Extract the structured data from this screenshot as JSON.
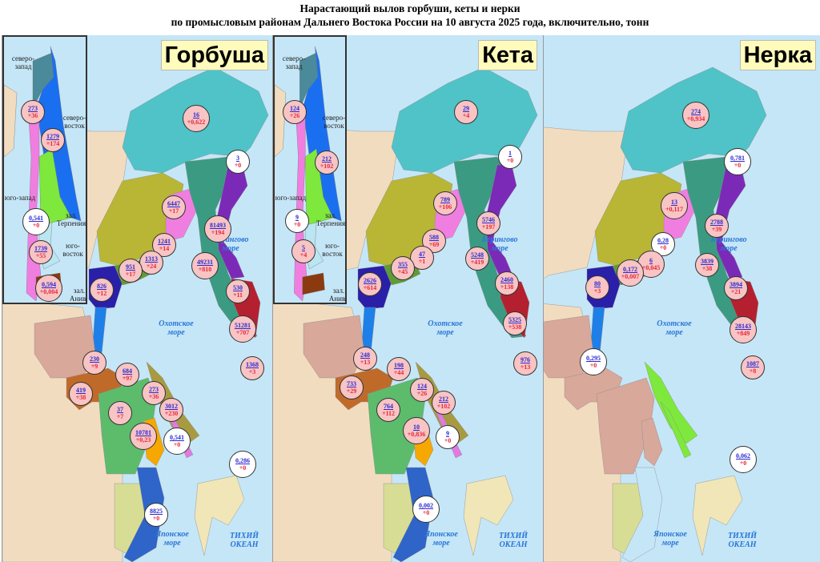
{
  "title": {
    "line1": "Нарастающий вылов горбуши, кеты и нерки",
    "line2": "по промысловым районам Дальнего Востока России на 10 августа 2025 года, включительно, тонн"
  },
  "colors": {
    "circle_nonzero": "#f8c4c4",
    "circle_zero": "#ffffff",
    "value_text": "#2a2ad0",
    "delta_text": "#e8283a",
    "sea": "#c5e6f7",
    "species_label_bg": "#fffbbb"
  },
  "seas": {
    "bering": "Берингово море",
    "okhotsk": "Охотское море",
    "japan": "Японское море",
    "pacific": "ТИХИЙ ОКЕАН"
  },
  "inset_labels": {
    "nw": "северо-запад",
    "ne": "северо-восток",
    "sw": "юго-запад",
    "terpeniya": "зал. Терпения",
    "se": "юго-восток",
    "aniva": "зал. Анива"
  },
  "panels": [
    {
      "species": "Горбуша",
      "inset": [
        {
          "value": "273",
          "delta": "+36"
        },
        {
          "value": "1279",
          "delta": "+174"
        },
        {
          "value": "0,541",
          "delta": "+0"
        },
        {
          "value": "1739",
          "delta": "+55"
        },
        {
          "value": "0,594",
          "delta": "+0,004"
        }
      ],
      "main": [
        {
          "value": "16",
          "delta": "+0,622"
        },
        {
          "value": "3",
          "delta": "+0"
        },
        {
          "value": "6447",
          "delta": "+17"
        },
        {
          "value": "81493",
          "delta": "+194"
        },
        {
          "value": "1241",
          "delta": "+14"
        },
        {
          "value": "49231",
          "delta": "+810"
        },
        {
          "value": "1313",
          "delta": "+24"
        },
        {
          "value": "951",
          "delta": "+17"
        },
        {
          "value": "826",
          "delta": "+12"
        },
        {
          "value": "530",
          "delta": "+11"
        },
        {
          "value": "51281",
          "delta": "+707"
        },
        {
          "value": "230",
          "delta": "+9"
        },
        {
          "value": "684",
          "delta": "+97"
        },
        {
          "value": "1368",
          "delta": "+3"
        },
        {
          "value": "419",
          "delta": "+38"
        },
        {
          "value": "273",
          "delta": "+36"
        },
        {
          "value": "3012",
          "delta": "+230"
        },
        {
          "value": "37",
          "delta": "+7"
        },
        {
          "value": "10781",
          "delta": "+0,23"
        },
        {
          "value": "0,541",
          "delta": "+0"
        },
        {
          "value": "0,286",
          "delta": "+0"
        },
        {
          "value": "8825",
          "delta": "+0"
        }
      ]
    },
    {
      "species": "Кета",
      "inset": [
        {
          "value": "124",
          "delta": "+26"
        },
        {
          "value": "212",
          "delta": "+102"
        },
        {
          "value": "9",
          "delta": "+0"
        },
        {
          "value": "5",
          "delta": "+4"
        }
      ],
      "main": [
        {
          "value": "29",
          "delta": "+4"
        },
        {
          "value": "1",
          "delta": "+0"
        },
        {
          "value": "789",
          "delta": "+106"
        },
        {
          "value": "5746",
          "delta": "+197"
        },
        {
          "value": "588",
          "delta": "+69"
        },
        {
          "value": "47",
          "delta": "+1"
        },
        {
          "value": "355",
          "delta": "+45"
        },
        {
          "value": "5248",
          "delta": "+419"
        },
        {
          "value": "2626",
          "delta": "+614"
        },
        {
          "value": "2460",
          "delta": "+138"
        },
        {
          "value": "5325",
          "delta": "+538"
        },
        {
          "value": "248",
          "delta": "+13"
        },
        {
          "value": "976",
          "delta": "+13"
        },
        {
          "value": "198",
          "delta": "+44"
        },
        {
          "value": "733",
          "delta": "+29"
        },
        {
          "value": "124",
          "delta": "+26"
        },
        {
          "value": "212",
          "delta": "+102"
        },
        {
          "value": "764",
          "delta": "+112"
        },
        {
          "value": "10",
          "delta": "+0,836"
        },
        {
          "value": "9",
          "delta": "+0"
        },
        {
          "value": "0,002",
          "delta": "+0"
        }
      ]
    },
    {
      "species": "Нерка",
      "main": [
        {
          "value": "274",
          "delta": "+0,934"
        },
        {
          "value": "0,781",
          "delta": "+0"
        },
        {
          "value": "13",
          "delta": "+0,117"
        },
        {
          "value": "2788",
          "delta": "+39"
        },
        {
          "value": "0,28",
          "delta": "+0"
        },
        {
          "value": "6",
          "delta": "+0,045"
        },
        {
          "value": "0,172",
          "delta": "+0,007"
        },
        {
          "value": "3839",
          "delta": "+38"
        },
        {
          "value": "80",
          "delta": "+3"
        },
        {
          "value": "3894",
          "delta": "+21"
        },
        {
          "value": "28143",
          "delta": "+849"
        },
        {
          "value": "0,295",
          "delta": "+0"
        },
        {
          "value": "1087",
          "delta": "+8"
        },
        {
          "value": "0,062",
          "delta": "+0"
        }
      ]
    }
  ]
}
